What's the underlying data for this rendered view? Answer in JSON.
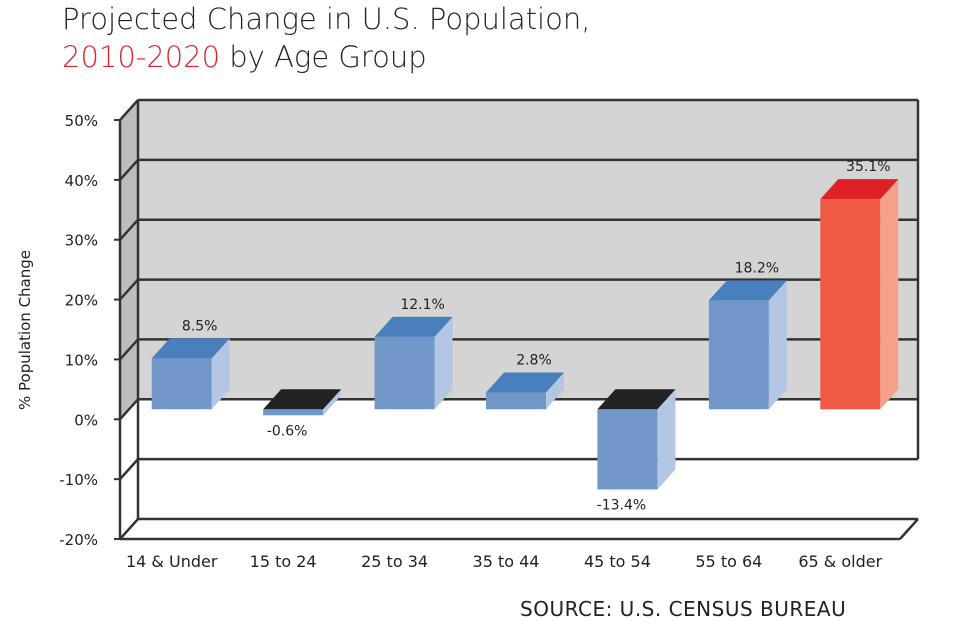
{
  "title_line1": "Projected Change in U.S. Population,",
  "title_years": "2010-2020",
  "title_rest": " by Age Group",
  "source": "SOURCE: U.S. CENSUS BUREAU",
  "chart_data": {
    "type": "bar",
    "ylabel": "% Population Change",
    "xlabel": "",
    "ylim": [
      -20,
      50
    ],
    "yticks": [
      -20,
      -10,
      0,
      10,
      20,
      30,
      40,
      50
    ],
    "ytick_labels": [
      "-20%",
      "-10%",
      "0%",
      "10%",
      "20%",
      "30%",
      "40%",
      "50%"
    ],
    "grid": true,
    "categories": [
      "14 & Under",
      "15 to 24",
      "25 to 34",
      "35 to 44",
      "45 to 54",
      "55 to 64",
      "65 & older"
    ],
    "values": [
      8.5,
      -0.6,
      12.1,
      2.8,
      -13.4,
      18.2,
      35.1
    ],
    "value_labels": [
      "8.5%",
      "-0.6%",
      "12.1%",
      "2.8%",
      "-13.4%",
      "18.2%",
      "35.1%"
    ],
    "colors": {
      "front": [
        "#7097c8",
        "#7097c8",
        "#7097c8",
        "#7097c8",
        "#7097c8",
        "#7097c8",
        "#f05a44"
      ],
      "top": [
        "#4a7fbd",
        "#222222",
        "#4a7fbd",
        "#4a7fbd",
        "#222222",
        "#4a7fbd",
        "#e02027"
      ],
      "side": [
        "#b3c7e5",
        "#b3c7e5",
        "#b3c7e5",
        "#b3c7e5",
        "#b3c7e5",
        "#b3c7e5",
        "#f7a08a"
      ],
      "wall": "#d4d4d4",
      "lines": "#333333"
    }
  }
}
